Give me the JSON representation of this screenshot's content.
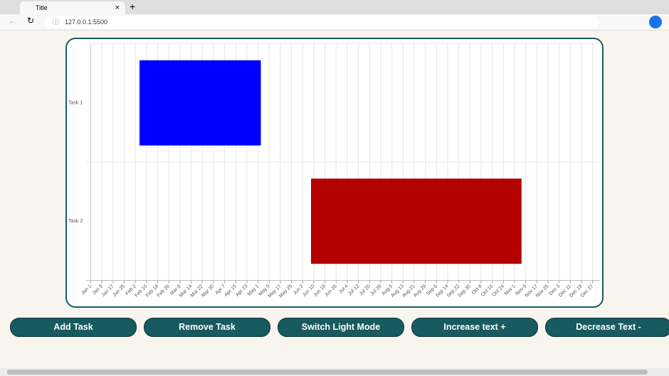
{
  "browser": {
    "tab_title": "Title",
    "url": "127.0.0.1:5500"
  },
  "chart_data": {
    "type": "gantt",
    "categories": [
      "Task 1",
      "Task 2"
    ],
    "starts": [
      35,
      158
    ],
    "ends": [
      122,
      309
    ],
    "colors": [
      "#0000ff",
      "#b30000"
    ],
    "xlim": [
      0,
      365
    ],
    "xticks": [
      {
        "value": 0,
        "label": "Jan 1"
      },
      {
        "value": 8,
        "label": "Jan 9"
      },
      {
        "value": 16,
        "label": "Jan 17"
      },
      {
        "value": 24,
        "label": "Jan 25"
      },
      {
        "value": 32,
        "label": "Feb 2"
      },
      {
        "value": 40,
        "label": "Feb 10"
      },
      {
        "value": 48,
        "label": "Feb 18"
      },
      {
        "value": 56,
        "label": "Feb 26"
      },
      {
        "value": 64,
        "label": "Mar 6"
      },
      {
        "value": 72,
        "label": "Mar 14"
      },
      {
        "value": 80,
        "label": "Mar 22"
      },
      {
        "value": 88,
        "label": "Mar 30"
      },
      {
        "value": 96,
        "label": "Apr 7"
      },
      {
        "value": 104,
        "label": "Apr 15"
      },
      {
        "value": 112,
        "label": "Apr 23"
      },
      {
        "value": 120,
        "label": "May 1"
      },
      {
        "value": 128,
        "label": "May 9"
      },
      {
        "value": 136,
        "label": "May 17"
      },
      {
        "value": 144,
        "label": "May 25"
      },
      {
        "value": 152,
        "label": "Jun 2"
      },
      {
        "value": 160,
        "label": "Jun 10"
      },
      {
        "value": 168,
        "label": "Jun 18"
      },
      {
        "value": 176,
        "label": "Jun 26"
      },
      {
        "value": 184,
        "label": "Jul 4"
      },
      {
        "value": 192,
        "label": "Jul 12"
      },
      {
        "value": 200,
        "label": "Jul 20"
      },
      {
        "value": 208,
        "label": "Jul 28"
      },
      {
        "value": 216,
        "label": "Aug 5"
      },
      {
        "value": 224,
        "label": "Aug 13"
      },
      {
        "value": 232,
        "label": "Aug 21"
      },
      {
        "value": 240,
        "label": "Aug 29"
      },
      {
        "value": 248,
        "label": "Sep 6"
      },
      {
        "value": 256,
        "label": "Sep 14"
      },
      {
        "value": 264,
        "label": "Sep 22"
      },
      {
        "value": 272,
        "label": "Sep 30"
      },
      {
        "value": 280,
        "label": "Oct 8"
      },
      {
        "value": 288,
        "label": "Oct 16"
      },
      {
        "value": 296,
        "label": "Oct 24"
      },
      {
        "value": 304,
        "label": "Nov 1"
      },
      {
        "value": 312,
        "label": "Nov 9"
      },
      {
        "value": 320,
        "label": "Nov 17"
      },
      {
        "value": 328,
        "label": "Nov 25"
      },
      {
        "value": 336,
        "label": "Dec 3"
      },
      {
        "value": 344,
        "label": "Dec 11"
      },
      {
        "value": 352,
        "label": "Dec 19"
      },
      {
        "value": 360,
        "label": "Dec 27"
      }
    ],
    "grid": true
  },
  "buttons": [
    "Add Task",
    "Remove Task",
    "Switch Light Mode",
    "Increase text +",
    "Decrease Text -"
  ]
}
